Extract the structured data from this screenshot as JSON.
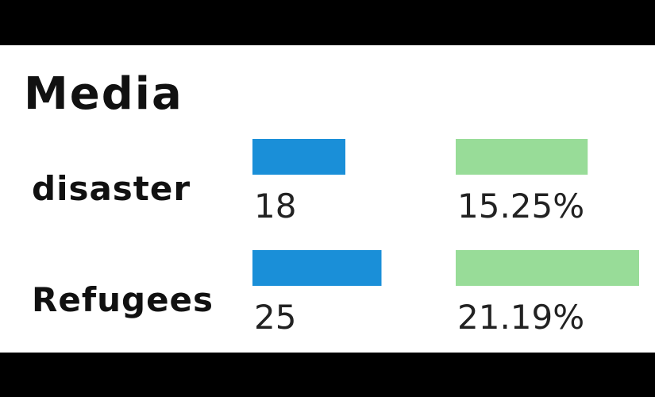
{
  "chart_data": {
    "type": "bar",
    "title": "Media",
    "categories": [
      "disaster",
      "Refugees"
    ],
    "series": [
      {
        "values": [
          18,
          25
        ],
        "labels": [
          "18",
          "25"
        ],
        "color": "#1a8fd8"
      },
      {
        "values": [
          15.25,
          21.19
        ],
        "labels": [
          "15.25%",
          "21.19%"
        ],
        "color": "#98dc98"
      }
    ],
    "grid": false,
    "xlabel": "",
    "ylabel": ""
  }
}
